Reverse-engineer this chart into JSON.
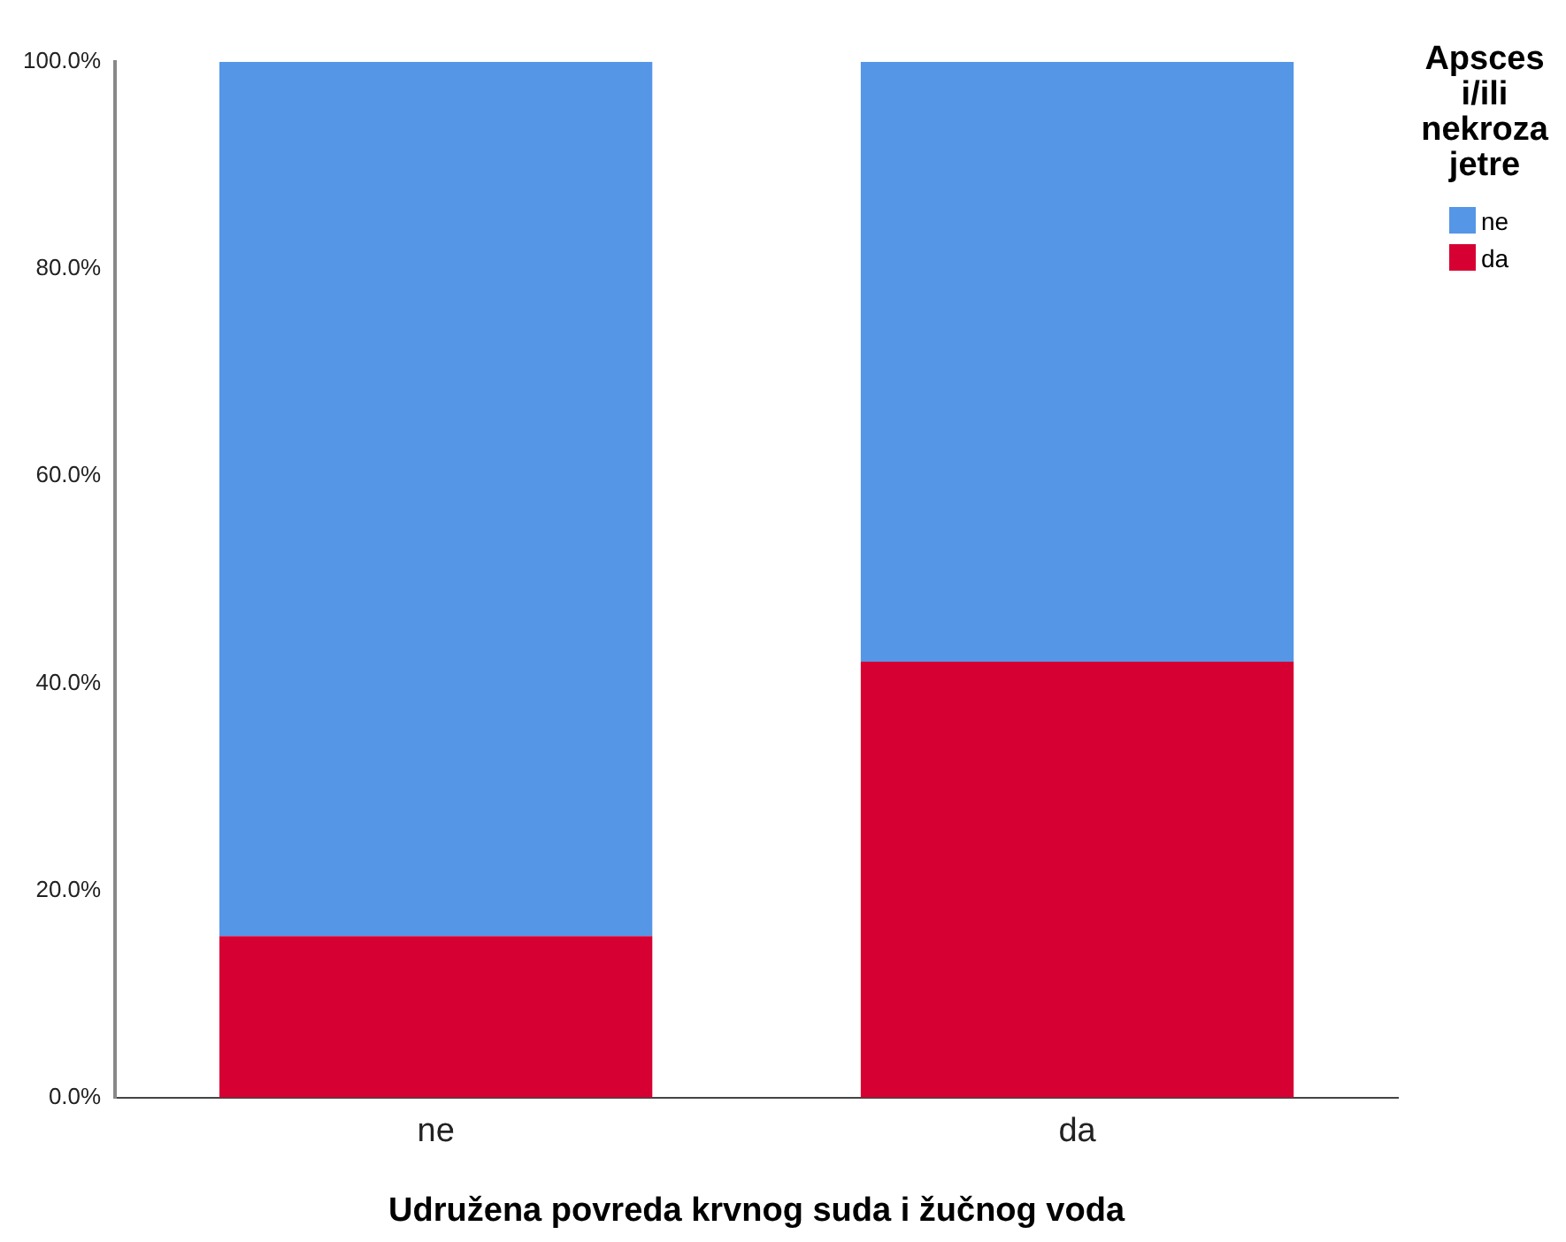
{
  "chart_data": {
    "type": "bar",
    "stacked": true,
    "xlabel": "Udružena povreda krvnog suda i žučnog voda",
    "legend_title": "Apsces i/ili nekroza jetre",
    "legend": "top right",
    "grid": false,
    "categories": [
      "ne",
      "da"
    ],
    "series": [
      {
        "name": "da",
        "color": "#d70033",
        "values": [
          15.6,
          42.1
        ]
      },
      {
        "name": "ne",
        "color": "#5596e6",
        "values": [
          84.4,
          57.9
        ]
      }
    ],
    "ylim": [
      0,
      100
    ],
    "yticks": [
      {
        "value": 0,
        "label": "0.0%"
      },
      {
        "value": 20,
        "label": "20.0%"
      },
      {
        "value": 40,
        "label": "40.0%"
      },
      {
        "value": 60,
        "label": "60.0%"
      },
      {
        "value": 80,
        "label": "80.0%"
      },
      {
        "value": 100,
        "label": "100.0%"
      }
    ]
  }
}
